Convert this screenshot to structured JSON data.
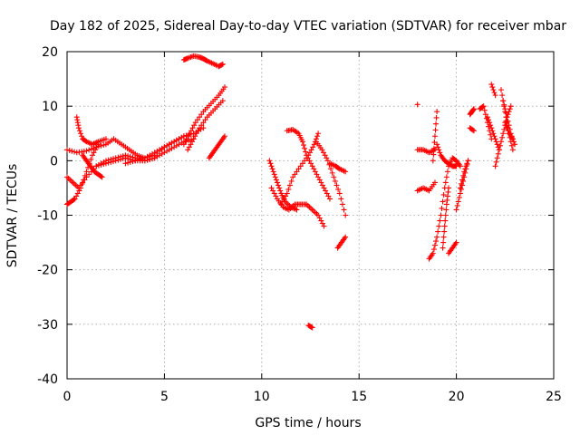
{
  "chart_data": {
    "type": "scatter",
    "title": "Day 182 of 2025, Sidereal Day-to-day VTEC variation (SDTVAR) for receiver mbar",
    "xlabel": "GPS time / hours",
    "ylabel": "SDTVAR / TECUs",
    "xlim": [
      0,
      25
    ],
    "ylim": [
      -40,
      20
    ],
    "xticks": [
      0,
      5,
      10,
      15,
      20,
      25
    ],
    "yticks": [
      -40,
      -30,
      -20,
      -10,
      0,
      10,
      20
    ],
    "grid": true,
    "marker": "plus",
    "color": "#ff0000",
    "series": [
      {
        "tracks": [
          {
            "x": [
              0.0,
              0.5,
              1.0,
              1.5,
              2.0,
              2.4,
              2.8,
              3.2,
              3.6,
              4.0,
              4.5,
              5.0,
              5.5,
              6.0,
              6.5,
              7.0
            ],
            "y": [
              2,
              1.5,
              1.8,
              2.5,
              3,
              4,
              3,
              2,
              1,
              0.5,
              1,
              2.5,
              3.5,
              4.5,
              5,
              6
            ]
          },
          {
            "x": [
              0.0,
              0.3,
              0.6,
              1.0,
              1.5,
              2.0,
              2.5,
              3.0,
              3.5,
              4.0,
              4.5,
              5.0,
              5.5,
              6.0,
              6.5
            ],
            "y": [
              -3,
              -4,
              -5,
              -3,
              -1,
              0,
              0.5,
              1,
              0.5,
              0,
              0.5,
              1.5,
              2.5,
              3.5,
              4
            ]
          },
          {
            "x": [
              0.0,
              0.2,
              0.4,
              0.7,
              1.0,
              1.3,
              1.6
            ],
            "y": [
              -8,
              -7.5,
              -7,
              -5,
              -2,
              1,
              3
            ]
          },
          {
            "x": [
              0.5,
              0.6,
              0.8,
              1.0,
              1.3,
              1.6,
              2.0
            ],
            "y": [
              8,
              6,
              4,
              3.5,
              3,
              3.5,
              4
            ]
          },
          {
            "x": [
              0.8,
              1.0,
              1.2,
              1.4,
              1.6,
              1.8
            ],
            "y": [
              1,
              0,
              -1,
              -2,
              -2.5,
              -3
            ]
          },
          {
            "x": [
              1.5,
              2.0,
              2.5,
              3.0,
              3.5,
              4.0,
              4.5
            ],
            "y": [
              -1,
              -0.5,
              0,
              0.5,
              0,
              0,
              0.5
            ]
          },
          {
            "x": [
              3.0,
              3.5,
              4.0,
              4.5,
              5.0,
              5.5,
              6.0
            ],
            "y": [
              -0.5,
              0,
              0.5,
              1.5,
              2.5,
              3.5,
              4.5
            ]
          },
          {
            "x": [
              6.0,
              6.3,
              6.6,
              7.0,
              7.4,
              7.8,
              8.1
            ],
            "y": [
              3,
              5,
              7,
              9,
              10.5,
              12,
              13.5
            ]
          },
          {
            "x": [
              6.2,
              6.5,
              6.8,
              7.2,
              7.6,
              8.0
            ],
            "y": [
              2,
              4,
              6,
              8,
              9.5,
              11
            ]
          },
          {
            "x": [
              6.0,
              6.2,
              6.5,
              6.8,
              7.0,
              7.2,
              7.5,
              7.8,
              8.0
            ],
            "y": [
              18.5,
              18.8,
              19.2,
              19.0,
              18.7,
              18.3,
              17.8,
              17.3,
              17.7
            ]
          },
          {
            "x": [
              7.3,
              7.5,
              7.7,
              7.9,
              8.1
            ],
            "y": [
              0.5,
              1.5,
              2.5,
              3.5,
              4.5
            ]
          },
          {
            "x": [
              10.4,
              10.6,
              10.8,
              11.0,
              11.2,
              11.5,
              11.8
            ],
            "y": [
              0,
              -2,
              -4,
              -6,
              -7.5,
              -8.5,
              -9
            ]
          },
          {
            "x": [
              10.5,
              10.8,
              11.1,
              11.4,
              11.7,
              12.0,
              12.3,
              12.6,
              12.9,
              13.2
            ],
            "y": [
              -5,
              -7,
              -8.5,
              -9,
              -8,
              -8,
              -8,
              -9,
              -10,
              -12
            ]
          },
          {
            "x": [
              11.0,
              11.3,
              11.6,
              12.0,
              12.4,
              12.7,
              12.9
            ],
            "y": [
              -8,
              -6,
              -3,
              -1,
              1,
              3,
              5
            ]
          },
          {
            "x": [
              11.3,
              11.6,
              11.9,
              12.1,
              12.3,
              12.6,
              12.9,
              13.2,
              13.5
            ],
            "y": [
              5.5,
              5.7,
              5.0,
              3.5,
              1,
              -1,
              -3,
              -5,
              -7
            ]
          },
          {
            "x": [
              12.8,
              13.1,
              13.4,
              13.7,
              14.0,
              14.3
            ],
            "y": [
              3.5,
              2,
              0,
              -3,
              -6,
              -10
            ]
          },
          {
            "x": [
              12.4,
              12.6
            ],
            "y": [
              -30.2,
              -30.6
            ]
          },
          {
            "x": [
              13.5,
              13.8,
              14.0,
              14.3
            ],
            "y": [
              -0.5,
              -1,
              -1.5,
              -2
            ]
          },
          {
            "x": [
              13.9,
              14.1,
              14.3
            ],
            "y": [
              -16,
              -15,
              -14
            ]
          },
          {
            "x": [
              18.0
            ],
            "y": [
              10.3
            ]
          },
          {
            "x": [
              18.0,
              18.3,
              18.6,
              18.9
            ],
            "y": [
              2,
              2,
              1.5,
              2
            ]
          },
          {
            "x": [
              18.0,
              18.3,
              18.6,
              18.9
            ],
            "y": [
              -5.5,
              -5,
              -5.5,
              -4
            ]
          },
          {
            "x": [
              18.8,
              18.9,
              19.0
            ],
            "y": [
              0,
              4.5,
              9
            ]
          },
          {
            "x": [
              18.6,
              18.8,
              19.0,
              19.2,
              19.4,
              19.6,
              19.8,
              20.0,
              20.2
            ],
            "y": [
              -18,
              -17,
              -14,
              -10,
              -5,
              -1,
              0.5,
              0,
              -1
            ]
          },
          {
            "x": [
              19.3,
              19.4,
              19.5,
              19.6
            ],
            "y": [
              -16,
              -12,
              -8,
              -5
            ]
          },
          {
            "x": [
              19.0,
              19.2,
              19.4,
              19.6,
              19.8,
              20.0
            ],
            "y": [
              3,
              1,
              0,
              -0.5,
              -1,
              -1
            ]
          },
          {
            "x": [
              19.6,
              19.8,
              20.0
            ],
            "y": [
              -17,
              -16,
              -15
            ]
          },
          {
            "x": [
              20.0,
              20.2,
              20.4,
              20.6
            ],
            "y": [
              -9,
              -6,
              -3,
              0
            ]
          },
          {
            "x": [
              20.2,
              20.4,
              20.6
            ],
            "y": [
              -5,
              -2,
              0
            ]
          },
          {
            "x": [
              20.7,
              20.8,
              20.9
            ],
            "y": [
              8.5,
              9,
              9.5
            ]
          },
          {
            "x": [
              20.7,
              20.9
            ],
            "y": [
              6,
              5.5
            ]
          },
          {
            "x": [
              21.2,
              21.4,
              21.6,
              21.8
            ],
            "y": [
              9.5,
              10,
              7,
              4
            ]
          },
          {
            "x": [
              21.6,
              21.8,
              22.0,
              22.2
            ],
            "y": [
              8,
              6,
              4,
              2
            ]
          },
          {
            "x": [
              21.8,
              22.0
            ],
            "y": [
              14,
              12
            ]
          },
          {
            "x": [
              22.0,
              22.2,
              22.4,
              22.6,
              22.8
            ],
            "y": [
              -1,
              2,
              5,
              8,
              10
            ]
          },
          {
            "x": [
              22.3,
              22.5,
              22.7,
              22.9
            ],
            "y": [
              13,
              9,
              5,
              2
            ]
          },
          {
            "x": [
              22.4,
              22.6,
              22.8,
              23.0
            ],
            "y": [
              11,
              8,
              5,
              3
            ]
          },
          {
            "x": [
              22.5,
              22.7,
              22.9
            ],
            "y": [
              7,
              5,
              4
            ]
          }
        ]
      }
    ]
  }
}
